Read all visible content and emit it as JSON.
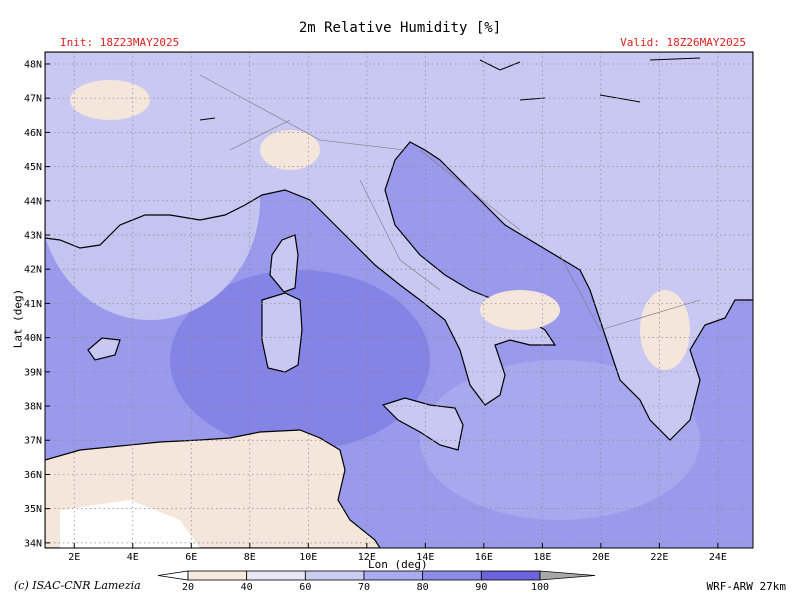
{
  "title": "2m Relative Humidity [%]",
  "init_label": "Init: 18Z23MAY2025",
  "valid_label": "Valid: 18Z26MAY2025",
  "credit": "(c) ISAC-CNR Lamezia",
  "model": "WRF-ARW 27km",
  "axes": {
    "xlabel": "Lon (deg)",
    "ylabel": "Lat (deg)",
    "lon_ticks": [
      "2E",
      "4E",
      "6E",
      "8E",
      "10E",
      "12E",
      "14E",
      "16E",
      "18E",
      "20E",
      "22E",
      "24E"
    ],
    "lon_values": [
      2,
      4,
      6,
      8,
      10,
      12,
      14,
      16,
      18,
      20,
      22,
      24
    ],
    "lat_ticks": [
      "48N",
      "47N",
      "46N",
      "45N",
      "44N",
      "43N",
      "42N",
      "41N",
      "40N",
      "39N",
      "38N",
      "37N",
      "36N",
      "35N",
      "34N"
    ],
    "lat_values": [
      48,
      47,
      46,
      45,
      44,
      43,
      42,
      41,
      40,
      39,
      38,
      37,
      36,
      35,
      34
    ],
    "lon_range": [
      1.0,
      25.2
    ],
    "lat_range": [
      33.85,
      48.35
    ],
    "grid": true
  },
  "colorbar": {
    "labels": [
      "20",
      "40",
      "60",
      "70",
      "80",
      "90",
      "100"
    ],
    "colors": [
      "#ffffff",
      "#f6eadf",
      "#e9e6f5",
      "#ccccf3",
      "#aaaaef",
      "#8b8be8",
      "#6b64dc"
    ]
  },
  "map": {
    "ocean_color": "#9a9aec",
    "land_color": "#c8c8f2"
  }
}
